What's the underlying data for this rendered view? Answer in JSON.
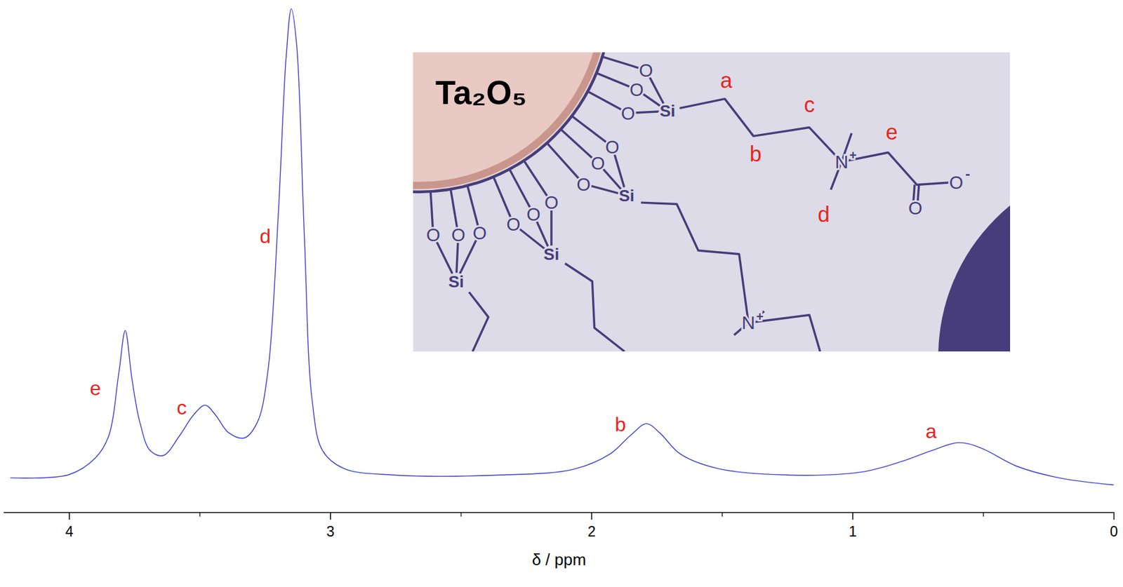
{
  "chart_data": {
    "type": "line",
    "xlabel": "δ / ppm",
    "x": [
      4.225,
      4.0,
      3.9,
      3.85,
      3.81,
      3.786,
      3.76,
      3.73,
      3.69,
      3.64,
      3.58,
      3.525,
      3.48,
      3.44,
      3.39,
      3.33,
      3.28,
      3.24,
      3.2,
      3.17,
      3.15,
      3.13,
      3.1,
      3.07,
      3.03,
      2.95,
      2.76,
      2.35,
      2.07,
      1.93,
      1.85,
      1.79,
      1.74,
      1.66,
      1.52,
      1.25,
      0.97,
      0.81,
      0.7,
      0.595,
      0.51,
      0.37,
      0.21,
      0
    ],
    "values": [
      0.3,
      1,
      4.5,
      9,
      22.6,
      31.3,
      21,
      12,
      6,
      5,
      9,
      13.5,
      15.6,
      13.5,
      9.8,
      8.7,
      12,
      22.6,
      55.6,
      88.7,
      99,
      91.7,
      51,
      16.5,
      6,
      2.3,
      0.9,
      0.9,
      2.1,
      5.3,
      9.3,
      11.7,
      9.8,
      5.3,
      2.3,
      0.9,
      1.5,
      3.8,
      6,
      7.7,
      6.6,
      2.7,
      0.3,
      -1.2
    ],
    "color": "#3a3ad6",
    "xlim": [
      4.25,
      0
    ],
    "xticks": [
      4,
      3,
      2,
      1,
      0
    ],
    "ylim": [
      -7,
      100
    ],
    "tick_labels": "x",
    "annotations": [
      {
        "text": "e",
        "x": 3.9,
        "y": 19
      },
      {
        "text": "c",
        "x": 3.57,
        "y": 15
      },
      {
        "text": "d",
        "x": 3.25,
        "y": 51
      },
      {
        "text": "b",
        "x": 1.89,
        "y": 11.5
      },
      {
        "text": "a",
        "x": 0.7,
        "y": 10
      }
    ]
  },
  "inset": {
    "particle": "Ta₂O₅",
    "oxygen": "O",
    "silicon": "Si",
    "nitrogen": "N",
    "cation": "+",
    "anion": "-",
    "chain_labels": [
      "a",
      "b",
      "c",
      "d",
      "e"
    ]
  }
}
